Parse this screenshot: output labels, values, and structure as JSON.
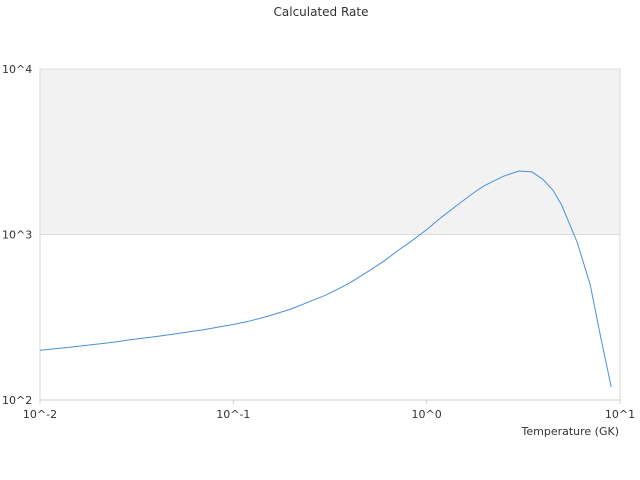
{
  "chart_data": {
    "type": "line",
    "title": "Calculated Rate",
    "xlabel": "Temperature (GK)",
    "ylabel": "",
    "x_scale": "log",
    "y_scale": "log",
    "xlim": [
      0.01,
      10
    ],
    "ylim": [
      100,
      10000
    ],
    "x_ticks": [
      0.01,
      0.1,
      1,
      10
    ],
    "x_tick_labels": [
      "10^-2",
      "10^-1",
      "10^0",
      "10^1"
    ],
    "y_ticks": [
      100,
      1000,
      10000
    ],
    "y_tick_labels": [
      "10^2",
      "10^3",
      "10^4"
    ],
    "shaded_band": {
      "from": 1000,
      "to": 10000,
      "color": "#f2f2f2"
    },
    "grid": false,
    "series": [
      {
        "color": "#4a90d9",
        "x": [
          0.01,
          0.0125,
          0.015,
          0.02,
          0.025,
          0.03,
          0.04,
          0.05,
          0.06,
          0.07,
          0.08,
          0.1,
          0.12,
          0.15,
          0.2,
          0.25,
          0.3,
          0.35,
          0.4,
          0.5,
          0.6,
          0.7,
          0.8,
          1.0,
          1.2,
          1.5,
          1.8,
          2.0,
          2.5,
          3.0,
          3.5,
          4.0,
          4.5,
          5.0,
          6.0,
          7.0,
          8.0,
          9.0
        ],
        "y": [
          200,
          205,
          210,
          218,
          225,
          232,
          242,
          251,
          259,
          266,
          273,
          286,
          299,
          320,
          355,
          395,
          430,
          470,
          510,
          600,
          690,
          790,
          880,
          1070,
          1280,
          1560,
          1830,
          1980,
          2250,
          2420,
          2390,
          2150,
          1850,
          1500,
          900,
          500,
          230,
          120
        ]
      }
    ]
  }
}
